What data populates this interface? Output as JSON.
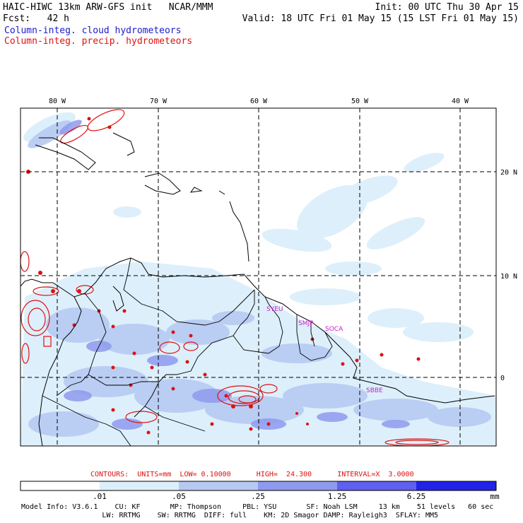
{
  "header": {
    "line1_left": "HAIC-HIWC 13km ARW-GFS init   NCAR/MMM",
    "line1_right": "Init: 00 UTC Thu 30 Apr 15",
    "line2_left": "Fcst:   42 h",
    "line2_right": "Valid: 18 UTC Fri 01 May 15 (15 LST Fri 01 May 15)",
    "field_cloud": "Column-integ. cloud hydrometeors",
    "field_precip": "Column-integ. precip. hydrometeors"
  },
  "map": {
    "lon_labels": [
      "80 W",
      "70 W",
      "60 W",
      "50 W",
      "40 W"
    ],
    "lat_labels": [
      "20 N",
      "10 N",
      "0"
    ],
    "region_labels": [
      "SYEU",
      "SMJP",
      "SOCA",
      "SBBE"
    ],
    "colors": {
      "coast": "#000000",
      "grid": "#000000",
      "precip": "#dd1111",
      "region_label": "#cc22cc"
    }
  },
  "contour_info": {
    "text": "CONTOURS:  UNITS=mm  LOW= 0.10000      HIGH=  24.300      INTERVAL=X  3.0000"
  },
  "colorbar": {
    "labels": [
      ".01",
      ".05",
      ".25",
      "1.25",
      "6.25"
    ],
    "units": "mm",
    "colors": [
      "#ffffff",
      "#dceffb",
      "#b6c9f2",
      "#8e9aee",
      "#5f5ff0",
      "#2222e8"
    ]
  },
  "model_info": {
    "line1": "Model Info: V3.6.1    CU: KF       MP: Thompson     PBL: YSU       SF: Noah LSM     13 km    51 levels   60 sec",
    "line2": "                   LW: RRTMG    SW: RRTMG  DIFF: full    KM: 2D Smagor DAMP: Rayleigh3  SFLAY: MM5"
  }
}
